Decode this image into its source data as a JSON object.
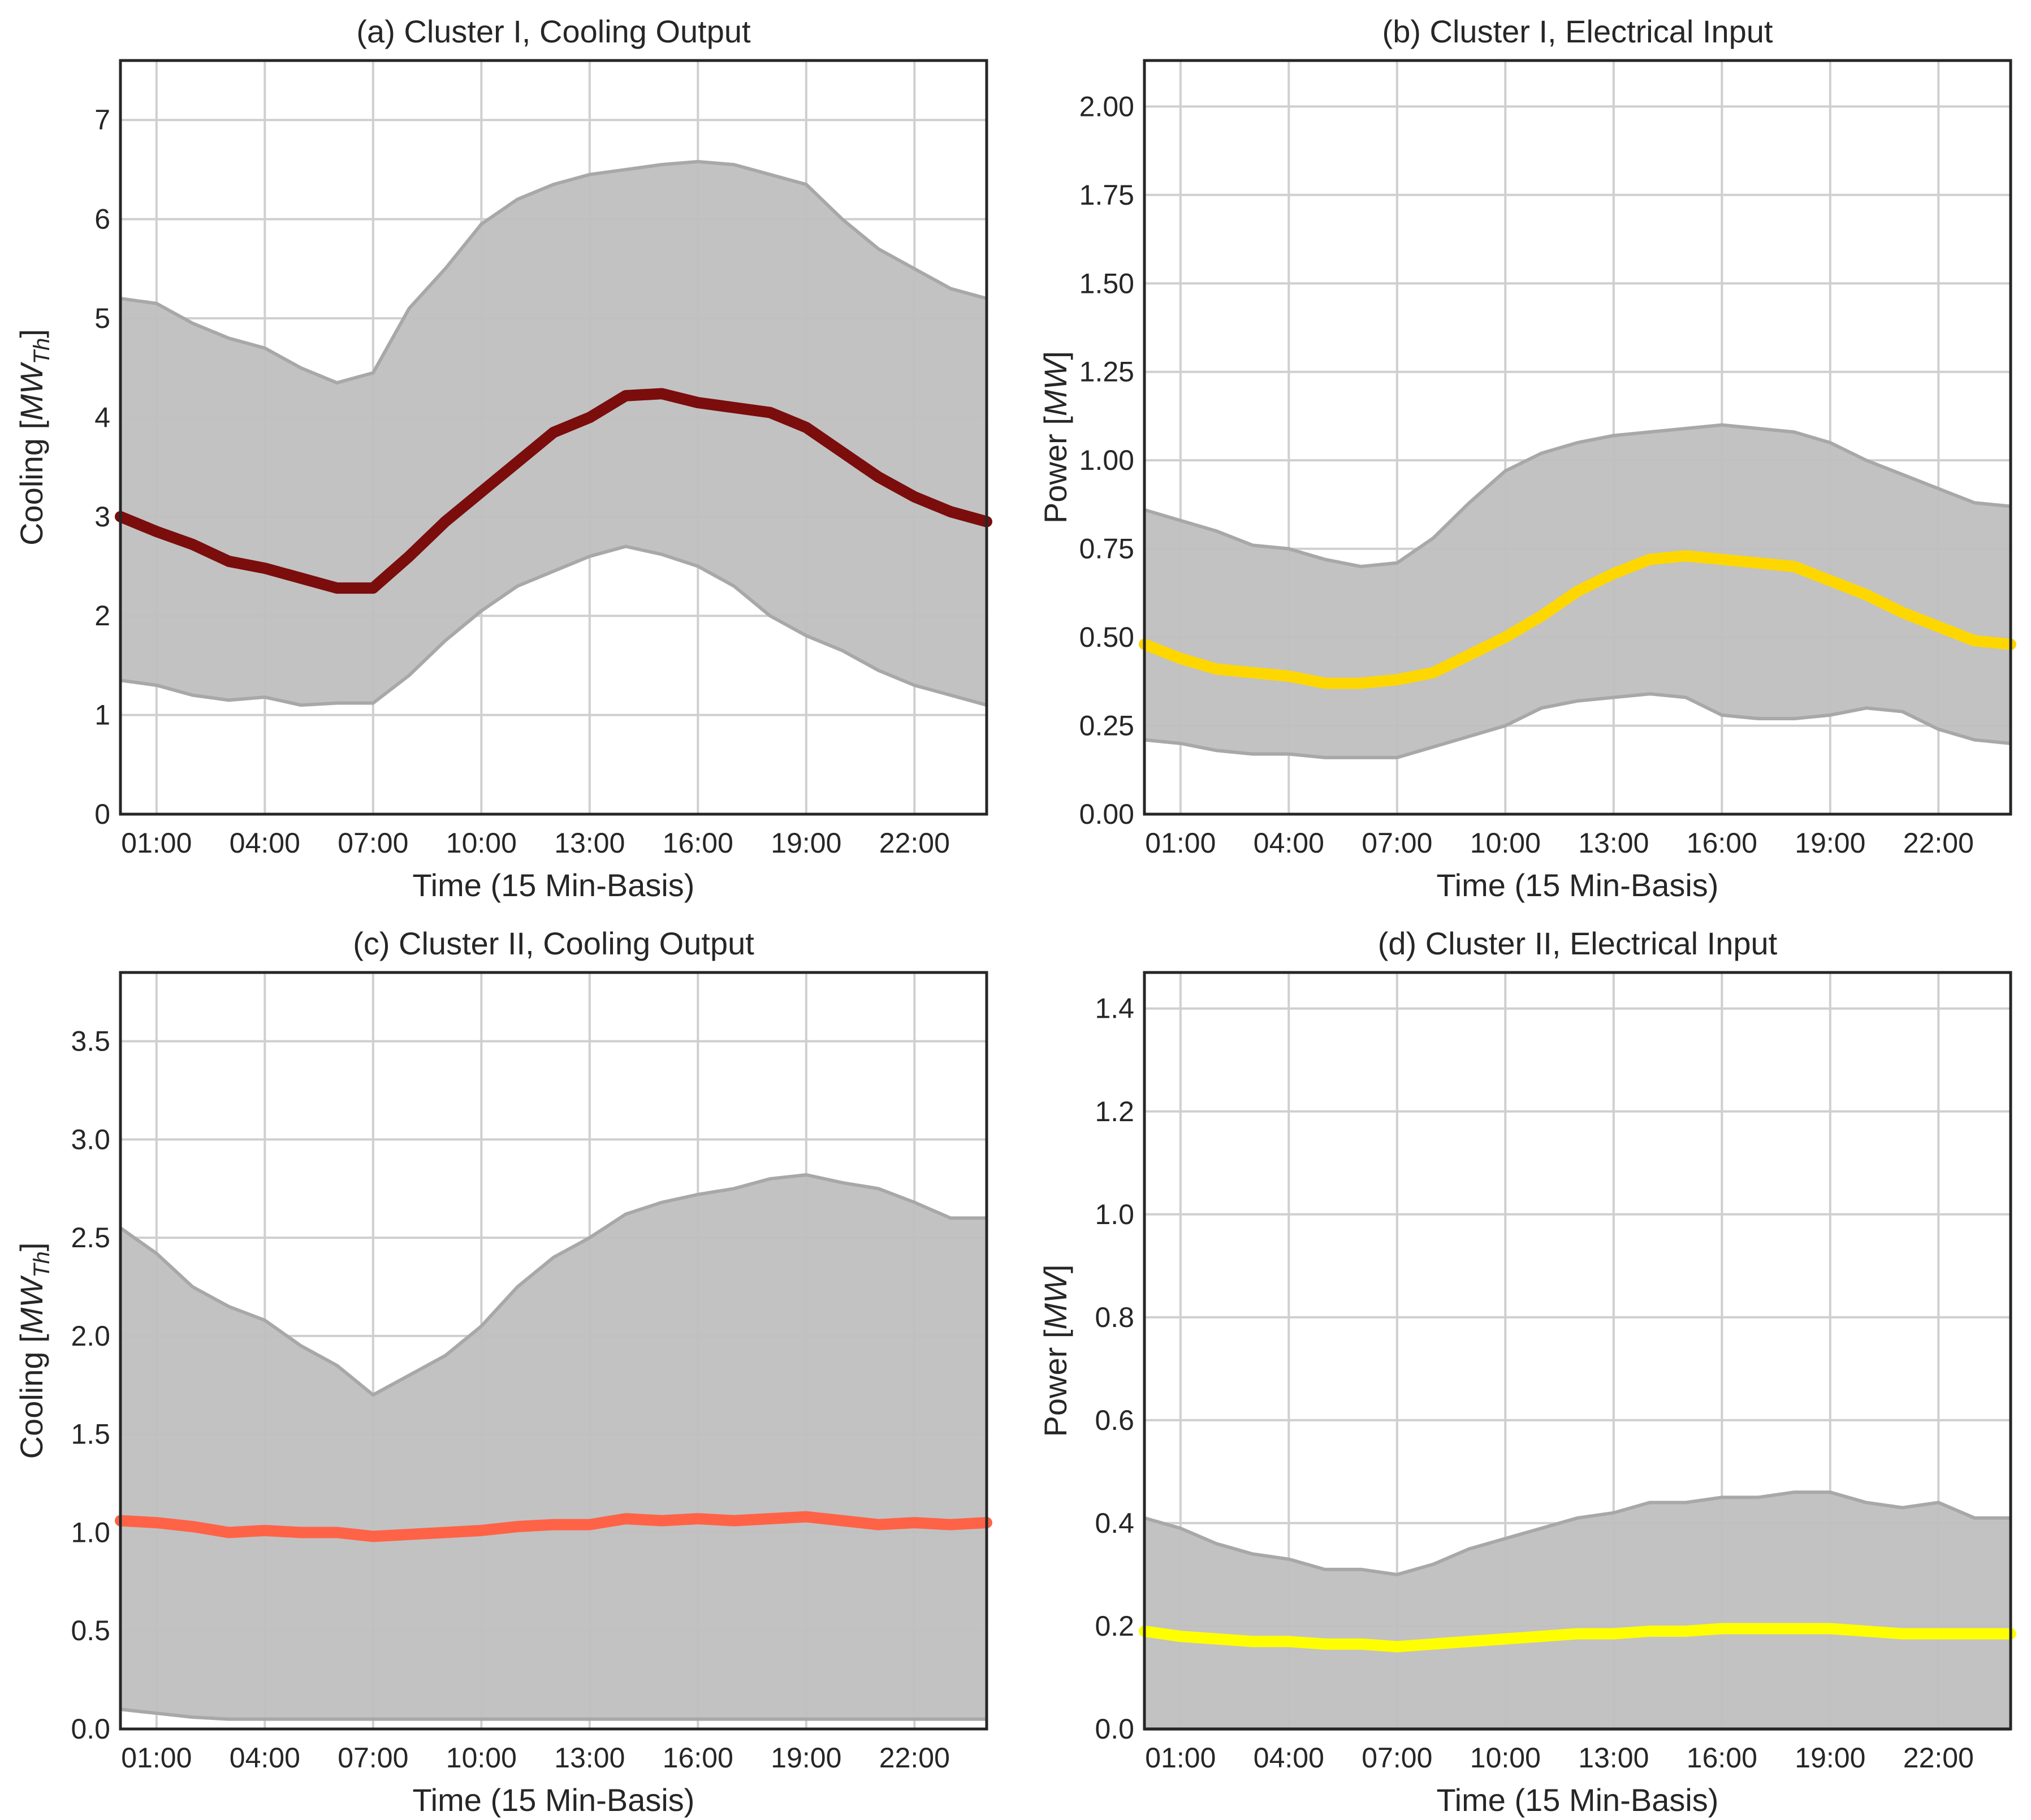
{
  "chart_data": [
    {
      "type": "area",
      "title": "(a) Cluster I, Cooling Output",
      "xlabel": "Time (15 Min-Basis)",
      "ylabel_main": "Cooling [",
      "ylabel_unit": "MW",
      "ylabel_sub": "Th",
      "ylabel_end": "]",
      "xlim": [
        0,
        24
      ],
      "ylim": [
        0,
        7.6
      ],
      "yticks": [
        0,
        1,
        2,
        3,
        4,
        5,
        6,
        7
      ],
      "ytick_labels": [
        "0",
        "1",
        "2",
        "3",
        "4",
        "5",
        "6",
        "7"
      ],
      "xticks": [
        1,
        4,
        7,
        10,
        13,
        16,
        19,
        22
      ],
      "xtick_labels": [
        "01:00",
        "04:00",
        "07:00",
        "10:00",
        "13:00",
        "16:00",
        "19:00",
        "22:00"
      ],
      "band_color": "#bfbfbf",
      "band_edge_color": "#a8a8a8",
      "line_color": "#7b0d0d",
      "x": [
        0,
        1,
        2,
        3,
        4,
        5,
        6,
        7,
        8,
        9,
        10,
        11,
        12,
        13,
        14,
        15,
        16,
        17,
        18,
        19,
        20,
        21,
        22,
        23,
        24
      ],
      "series": [
        {
          "name": "upper",
          "values": [
            5.2,
            5.15,
            4.95,
            4.8,
            4.7,
            4.5,
            4.35,
            4.45,
            5.1,
            5.5,
            5.95,
            6.2,
            6.35,
            6.45,
            6.5,
            6.55,
            6.58,
            6.55,
            6.45,
            6.35,
            6.0,
            5.7,
            5.5,
            5.3,
            5.2
          ]
        },
        {
          "name": "mean",
          "values": [
            3.0,
            2.85,
            2.72,
            2.55,
            2.48,
            2.38,
            2.28,
            2.28,
            2.6,
            2.95,
            3.25,
            3.55,
            3.85,
            4.0,
            4.22,
            4.24,
            4.15,
            4.1,
            4.05,
            3.9,
            3.65,
            3.4,
            3.2,
            3.05,
            2.95
          ]
        },
        {
          "name": "lower",
          "values": [
            1.35,
            1.3,
            1.2,
            1.15,
            1.18,
            1.1,
            1.12,
            1.12,
            1.4,
            1.75,
            2.05,
            2.3,
            2.45,
            2.6,
            2.7,
            2.62,
            2.5,
            2.3,
            2.0,
            1.8,
            1.65,
            1.45,
            1.3,
            1.2,
            1.1
          ]
        }
      ]
    },
    {
      "type": "area",
      "title": "(b) Cluster I, Electrical Input",
      "xlabel": "Time (15 Min-Basis)",
      "ylabel_main": "Power [",
      "ylabel_unit": "MW",
      "ylabel_sub": "",
      "ylabel_end": "]",
      "xlim": [
        0,
        24
      ],
      "ylim": [
        0,
        2.13
      ],
      "yticks": [
        0,
        0.25,
        0.5,
        0.75,
        1.0,
        1.25,
        1.5,
        1.75,
        2.0
      ],
      "ytick_labels": [
        "0.00",
        "0.25",
        "0.50",
        "0.75",
        "1.00",
        "1.25",
        "1.50",
        "1.75",
        "2.00"
      ],
      "xticks": [
        1,
        4,
        7,
        10,
        13,
        16,
        19,
        22
      ],
      "xtick_labels": [
        "01:00",
        "04:00",
        "07:00",
        "10:00",
        "13:00",
        "16:00",
        "19:00",
        "22:00"
      ],
      "band_color": "#bfbfbf",
      "band_edge_color": "#a8a8a8",
      "line_color": "#ffd700",
      "x": [
        0,
        1,
        2,
        3,
        4,
        5,
        6,
        7,
        8,
        9,
        10,
        11,
        12,
        13,
        14,
        15,
        16,
        17,
        18,
        19,
        20,
        21,
        22,
        23,
        24
      ],
      "series": [
        {
          "name": "upper",
          "values": [
            0.86,
            0.83,
            0.8,
            0.76,
            0.75,
            0.72,
            0.7,
            0.71,
            0.78,
            0.88,
            0.97,
            1.02,
            1.05,
            1.07,
            1.08,
            1.09,
            1.1,
            1.09,
            1.08,
            1.05,
            1.0,
            0.96,
            0.92,
            0.88,
            0.87
          ]
        },
        {
          "name": "mean",
          "values": [
            0.48,
            0.44,
            0.41,
            0.4,
            0.39,
            0.37,
            0.37,
            0.38,
            0.4,
            0.45,
            0.5,
            0.56,
            0.63,
            0.68,
            0.72,
            0.73,
            0.72,
            0.71,
            0.7,
            0.66,
            0.62,
            0.57,
            0.53,
            0.49,
            0.48
          ]
        },
        {
          "name": "lower",
          "values": [
            0.21,
            0.2,
            0.18,
            0.17,
            0.17,
            0.16,
            0.16,
            0.16,
            0.19,
            0.22,
            0.25,
            0.3,
            0.32,
            0.33,
            0.34,
            0.33,
            0.28,
            0.27,
            0.27,
            0.28,
            0.3,
            0.29,
            0.24,
            0.21,
            0.2
          ]
        }
      ]
    },
    {
      "type": "area",
      "title": "(c) Cluster II, Cooling Output",
      "xlabel": "Time (15 Min-Basis)",
      "ylabel_main": "Cooling [",
      "ylabel_unit": "MW",
      "ylabel_sub": "Th",
      "ylabel_end": "]",
      "xlim": [
        0,
        24
      ],
      "ylim": [
        0,
        3.85
      ],
      "yticks": [
        0,
        0.5,
        1.0,
        1.5,
        2.0,
        2.5,
        3.0,
        3.5
      ],
      "ytick_labels": [
        "0.0",
        "0.5",
        "1.0",
        "1.5",
        "2.0",
        "2.5",
        "3.0",
        "3.5"
      ],
      "xticks": [
        1,
        4,
        7,
        10,
        13,
        16,
        19,
        22
      ],
      "xtick_labels": [
        "01:00",
        "04:00",
        "07:00",
        "10:00",
        "13:00",
        "16:00",
        "19:00",
        "22:00"
      ],
      "band_color": "#bfbfbf",
      "band_edge_color": "#a8a8a8",
      "line_color": "#ff6347",
      "x": [
        0,
        1,
        2,
        3,
        4,
        5,
        6,
        7,
        8,
        9,
        10,
        11,
        12,
        13,
        14,
        15,
        16,
        17,
        18,
        19,
        20,
        21,
        22,
        23,
        24
      ],
      "series": [
        {
          "name": "upper",
          "values": [
            2.55,
            2.42,
            2.25,
            2.15,
            2.08,
            1.95,
            1.85,
            1.7,
            1.8,
            1.9,
            2.05,
            2.25,
            2.4,
            2.5,
            2.62,
            2.68,
            2.72,
            2.75,
            2.8,
            2.82,
            2.78,
            2.75,
            2.68,
            2.6,
            2.6
          ]
        },
        {
          "name": "mean",
          "values": [
            1.06,
            1.05,
            1.03,
            1.0,
            1.01,
            1.0,
            1.0,
            0.98,
            0.99,
            1.0,
            1.01,
            1.03,
            1.04,
            1.04,
            1.07,
            1.06,
            1.07,
            1.06,
            1.07,
            1.08,
            1.06,
            1.04,
            1.05,
            1.04,
            1.05
          ]
        },
        {
          "name": "lower",
          "values": [
            0.1,
            0.08,
            0.06,
            0.05,
            0.05,
            0.05,
            0.05,
            0.05,
            0.05,
            0.05,
            0.05,
            0.05,
            0.05,
            0.05,
            0.05,
            0.05,
            0.05,
            0.05,
            0.05,
            0.05,
            0.05,
            0.05,
            0.05,
            0.05,
            0.05
          ]
        }
      ]
    },
    {
      "type": "area",
      "title": "(d) Cluster II, Electrical Input",
      "xlabel": "Time (15 Min-Basis)",
      "ylabel_main": "Power [",
      "ylabel_unit": "MW",
      "ylabel_sub": "",
      "ylabel_end": "]",
      "xlim": [
        0,
        24
      ],
      "ylim": [
        0,
        1.47
      ],
      "yticks": [
        0,
        0.2,
        0.4,
        0.6,
        0.8,
        1.0,
        1.2,
        1.4
      ],
      "ytick_labels": [
        "0.0",
        "0.2",
        "0.4",
        "0.6",
        "0.8",
        "1.0",
        "1.2",
        "1.4"
      ],
      "xticks": [
        1,
        4,
        7,
        10,
        13,
        16,
        19,
        22
      ],
      "xtick_labels": [
        "01:00",
        "04:00",
        "07:00",
        "10:00",
        "13:00",
        "16:00",
        "19:00",
        "22:00"
      ],
      "band_color": "#bfbfbf",
      "band_edge_color": "#a8a8a8",
      "line_color": "#ffff00",
      "x": [
        0,
        1,
        2,
        3,
        4,
        5,
        6,
        7,
        8,
        9,
        10,
        11,
        12,
        13,
        14,
        15,
        16,
        17,
        18,
        19,
        20,
        21,
        22,
        23,
        24
      ],
      "series": [
        {
          "name": "upper",
          "values": [
            0.41,
            0.39,
            0.36,
            0.34,
            0.33,
            0.31,
            0.31,
            0.3,
            0.32,
            0.35,
            0.37,
            0.39,
            0.41,
            0.42,
            0.44,
            0.44,
            0.45,
            0.45,
            0.46,
            0.46,
            0.44,
            0.43,
            0.44,
            0.41,
            0.41
          ]
        },
        {
          "name": "mean",
          "values": [
            0.19,
            0.18,
            0.175,
            0.17,
            0.17,
            0.165,
            0.165,
            0.16,
            0.165,
            0.17,
            0.175,
            0.18,
            0.185,
            0.185,
            0.19,
            0.19,
            0.195,
            0.195,
            0.195,
            0.195,
            0.19,
            0.185,
            0.185,
            0.185,
            0.185
          ]
        },
        {
          "name": "lower",
          "values": [
            0.0,
            0.0,
            0.0,
            0.0,
            0.0,
            0.0,
            0.0,
            0.0,
            0.0,
            0.0,
            0.0,
            0.0,
            0.0,
            0.0,
            0.0,
            0.0,
            0.0,
            0.0,
            0.0,
            0.0,
            0.0,
            0.0,
            0.0,
            0.0,
            0.0
          ]
        }
      ]
    }
  ]
}
